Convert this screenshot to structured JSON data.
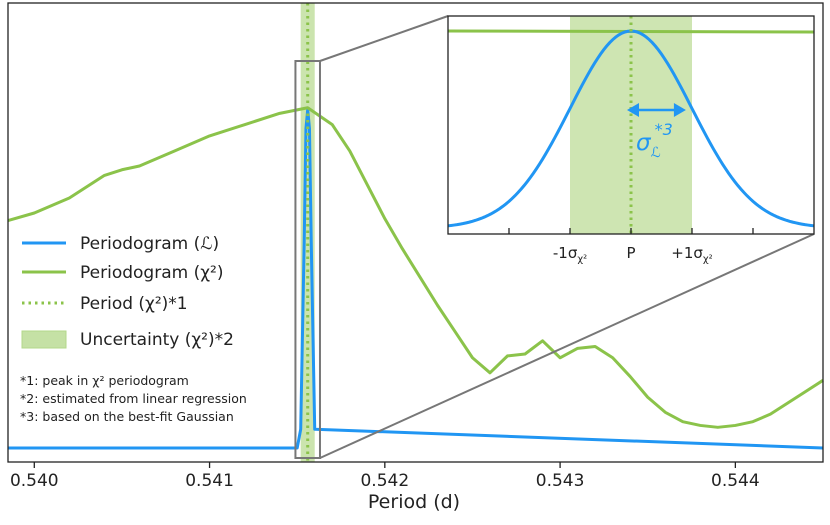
{
  "chart_data": {
    "type": "line",
    "xlabel": "Period (d)",
    "ylabel": "",
    "xlim": [
      0.53985,
      0.5445
    ],
    "ylim": [
      0,
      1
    ],
    "x_ticks": [
      0.54,
      0.541,
      0.542,
      0.543,
      0.544
    ],
    "x_tick_labels": [
      "0.540",
      "0.541",
      "0.542",
      "0.543",
      "0.544"
    ],
    "series": [
      {
        "name": "Periodogram (ℒ)",
        "color": "#2196f3",
        "style": "solid",
        "x": [
          0.53985,
          0.5415,
          0.54152,
          0.54154,
          0.54155,
          0.54156,
          0.54157,
          0.54158,
          0.5416,
          0.5445
        ],
        "y": [
          0.0,
          0.0,
          0.05,
          0.55,
          0.85,
          0.9,
          0.85,
          0.55,
          0.05,
          0.0
        ]
      },
      {
        "name": "Periodogram (χ²)",
        "color": "#8bc34a",
        "style": "solid",
        "x": [
          0.53985,
          0.54,
          0.5402,
          0.5404,
          0.5405,
          0.5406,
          0.5408,
          0.541,
          0.5412,
          0.5414,
          0.54156,
          0.5417,
          0.5418,
          0.5419,
          0.542,
          0.5421,
          0.5422,
          0.5423,
          0.5424,
          0.5425,
          0.5426,
          0.5427,
          0.5428,
          0.5429,
          0.543,
          0.5431,
          0.5432,
          0.5433,
          0.5434,
          0.5435,
          0.5436,
          0.5437,
          0.5438,
          0.5439,
          0.544,
          0.5441,
          0.5442,
          0.5443,
          0.5444,
          0.5445
        ],
        "y": [
          0.605,
          0.625,
          0.665,
          0.725,
          0.74,
          0.75,
          0.79,
          0.83,
          0.86,
          0.89,
          0.905,
          0.86,
          0.79,
          0.7,
          0.61,
          0.53,
          0.455,
          0.38,
          0.31,
          0.24,
          0.2,
          0.245,
          0.25,
          0.285,
          0.24,
          0.265,
          0.27,
          0.24,
          0.19,
          0.135,
          0.095,
          0.07,
          0.06,
          0.055,
          0.06,
          0.07,
          0.09,
          0.12,
          0.15,
          0.18
        ]
      }
    ],
    "period": {
      "label": "Period (χ²)*1",
      "value": 0.54156,
      "color": "#8bc34a",
      "style": "dotted"
    },
    "uncertainty": {
      "label": "Uncertainty (χ²)*2",
      "low": 0.54152,
      "high": 0.5416,
      "color": "#c5e1a5"
    },
    "zoom_box": {
      "x_low": 0.54149,
      "x_high": 0.54163
    },
    "legend": [
      "Periodogram (ℒ)",
      "Periodogram (χ²)",
      "Period (χ²)*1",
      "Uncertainty (χ²)*2"
    ],
    "legend_position": "left"
  },
  "notes": {
    "n1": "*1: peak in χ² periodogram",
    "n2": "*2: estimated from linear regression",
    "n3": "*3: based on the best-fit Gaussian"
  },
  "inset": {
    "gauss_mu": 0.0,
    "gauss_sigma": 1.0,
    "xlim": [
      -3.0,
      3.0
    ],
    "band": [
      -1.0,
      1.0
    ],
    "tick_positions": [
      -2.0,
      -1.0,
      0.0,
      1.0,
      2.0
    ],
    "tick_labels": {
      "minus": "-1σ",
      "p": "P",
      "plus": "+1σ",
      "sub": "χ²"
    },
    "sigma_label": {
      "sym": "σ",
      "sub": "ℒ",
      "sup": "*3"
    }
  }
}
